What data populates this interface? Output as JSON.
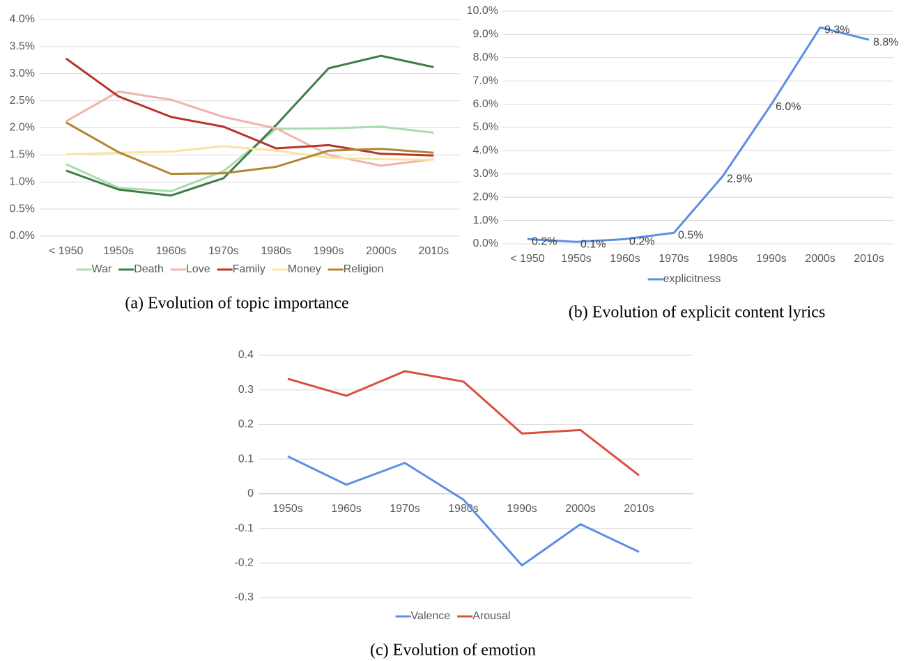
{
  "chart_data": [
    {
      "type": "line",
      "caption": "(a) Evolution of topic importance",
      "categories": [
        "< 1950",
        "1950s",
        "1960s",
        "1970s",
        "1980s",
        "1990s",
        "2000s",
        "2010s"
      ],
      "ylim": [
        0,
        4
      ],
      "yticks": [
        {
          "value": 0,
          "label": "0.0%"
        },
        {
          "value": 0.5,
          "label": "0.5%"
        },
        {
          "value": 1,
          "label": "1.0%"
        },
        {
          "value": 1.5,
          "label": "1.5%"
        },
        {
          "value": 2,
          "label": "2.0%"
        },
        {
          "value": 2.5,
          "label": "2.5%"
        },
        {
          "value": 3,
          "label": "3.0%"
        },
        {
          "value": 3.5,
          "label": "3.5%"
        },
        {
          "value": 4,
          "label": "4.0%"
        }
      ],
      "grid": true,
      "series": [
        {
          "name": "War",
          "color": "#a8dcb0",
          "values": [
            1.33,
            0.89,
            0.83,
            1.2,
            1.98,
            1.99,
            2.02,
            1.91
          ]
        },
        {
          "name": "Death",
          "color": "#3f7d45",
          "values": [
            1.21,
            0.86,
            0.75,
            1.07,
            2.05,
            3.1,
            3.33,
            3.12
          ]
        },
        {
          "name": "Love",
          "color": "#efb4ae",
          "values": [
            2.12,
            2.67,
            2.52,
            2.2,
            1.99,
            1.5,
            1.3,
            1.42
          ]
        },
        {
          "name": "Family",
          "color": "#b5352a",
          "values": [
            3.28,
            2.58,
            2.2,
            2.02,
            1.62,
            1.68,
            1.52,
            1.49
          ]
        },
        {
          "name": "Money",
          "color": "#fbe3a0",
          "values": [
            1.51,
            1.54,
            1.56,
            1.66,
            1.58,
            1.45,
            1.42,
            1.41
          ]
        },
        {
          "name": "Religion",
          "color": "#b0862e",
          "values": [
            2.1,
            1.55,
            1.15,
            1.16,
            1.28,
            1.58,
            1.61,
            1.54
          ]
        }
      ]
    },
    {
      "type": "line",
      "caption": "(b) Evolution of explicit content lyrics",
      "categories": [
        "< 1950",
        "1950s",
        "1960s",
        "1970s",
        "1980s",
        "1990s",
        "2000s",
        "2010s"
      ],
      "ylim": [
        0,
        10
      ],
      "yticks": [
        {
          "value": 0,
          "label": "0.0%"
        },
        {
          "value": 1,
          "label": "1.0%"
        },
        {
          "value": 2,
          "label": "2.0%"
        },
        {
          "value": 3,
          "label": "3.0%"
        },
        {
          "value": 4,
          "label": "4.0%"
        },
        {
          "value": 5,
          "label": "5.0%"
        },
        {
          "value": 6,
          "label": "6.0%"
        },
        {
          "value": 7,
          "label": "7.0%"
        },
        {
          "value": 8,
          "label": "8.0%"
        },
        {
          "value": 9,
          "label": "9.0%"
        },
        {
          "value": 10,
          "label": "10.0%"
        }
      ],
      "grid": true,
      "series": [
        {
          "name": "explicitness",
          "color": "#5b8ee6",
          "values": [
            0.2,
            0.08,
            0.2,
            0.47,
            2.9,
            6.0,
            9.3,
            8.77
          ],
          "value_labels": [
            "0.2%",
            "0.1%",
            "0.2%",
            "0.5%",
            "2.9%",
            "6.0%",
            "9.3%",
            "8.8%"
          ]
        }
      ]
    },
    {
      "type": "line",
      "caption": "(c) Evolution of emotion",
      "categories": [
        "1950s",
        "1960s",
        "1970s",
        "1980s",
        "1990s",
        "2000s",
        "2010s"
      ],
      "ylim": [
        -0.3,
        0.4
      ],
      "yticks": [
        -0.3,
        -0.2,
        -0.1,
        0,
        0.1,
        0.2,
        0.3,
        0.4
      ],
      "grid": true,
      "series": [
        {
          "name": "Valence",
          "color": "#5b8ee6",
          "values": [
            0.108,
            0.026,
            0.089,
            -0.017,
            -0.207,
            -0.088,
            -0.168
          ]
        },
        {
          "name": "Arousal",
          "color": "#d9503f",
          "values": [
            0.332,
            0.283,
            0.354,
            0.324,
            0.174,
            0.184,
            0.053
          ]
        }
      ]
    }
  ]
}
